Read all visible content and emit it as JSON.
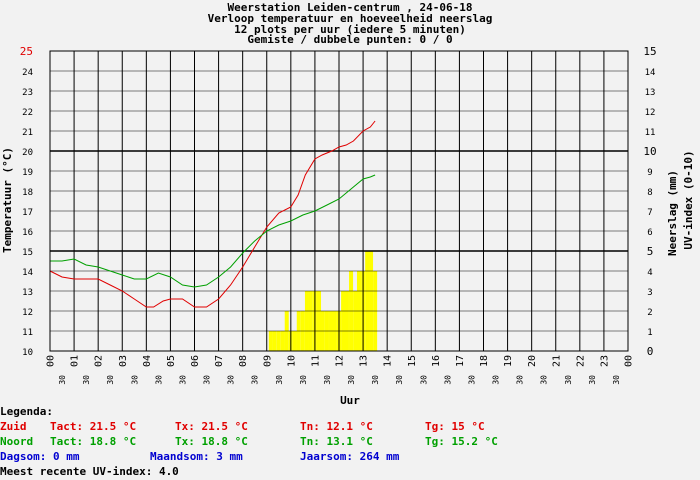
{
  "chart_data": {
    "type": "line",
    "title_lines": [
      "Weerstation Leiden-centrum , 24-06-18",
      "Verloop temperatuur en hoeveelheid neerslag",
      "12 plots per uur (iedere 5 minuten)",
      "Gemiste / dubbele punten: 0 / 0"
    ],
    "xlabel": "Uur",
    "ylabel_left": "Temperatuur (°C)",
    "ylabel_right_1": "Neerslag (mm)",
    "ylabel_right_2": "UV-index (0-10)",
    "left_axis": {
      "min": 10,
      "max": 25,
      "ticks": [
        "10",
        "11",
        "12",
        "13",
        "14",
        "15",
        "16",
        "17",
        "18",
        "19",
        "20",
        "21",
        "22",
        "23",
        "24",
        "25"
      ]
    },
    "right_axis": {
      "min": 0,
      "max": 15,
      "ticks": [
        "0",
        "1",
        "2",
        "3",
        "4",
        "5",
        "6",
        "7",
        "8",
        "9",
        "10",
        "11",
        "12",
        "13",
        "14",
        "15"
      ]
    },
    "hour_labels": [
      "00",
      "01",
      "02",
      "03",
      "04",
      "05",
      "06",
      "07",
      "08",
      "09",
      "10",
      "11",
      "12",
      "13",
      "14",
      "15",
      "16",
      "17",
      "18",
      "19",
      "20",
      "21",
      "22",
      "23",
      "00"
    ],
    "half_label": "30",
    "series": [
      {
        "name": "Zuid",
        "color": "#e00000",
        "x": [
          0,
          0.5,
          1,
          2,
          2.5,
          3,
          3.5,
          4,
          4.3,
          4.7,
          5,
          5.5,
          6,
          6.5,
          7,
          7.5,
          8,
          8.5,
          9,
          9.5,
          10,
          10.3,
          10.6,
          11,
          11.3,
          11.7,
          12,
          12.3,
          12.6,
          13,
          13.3,
          13.5
        ],
        "y": [
          14.0,
          13.7,
          13.6,
          13.6,
          13.3,
          13.0,
          12.6,
          12.2,
          12.2,
          12.5,
          12.6,
          12.6,
          12.2,
          12.2,
          12.6,
          13.3,
          14.2,
          15.2,
          16.2,
          16.9,
          17.2,
          17.8,
          18.8,
          19.6,
          19.8,
          20.0,
          20.2,
          20.3,
          20.5,
          21.0,
          21.2,
          21.5
        ]
      },
      {
        "name": "Noord",
        "color": "#00a000",
        "x": [
          0,
          0.5,
          1,
          1.5,
          2,
          2.5,
          3,
          3.5,
          4,
          4.5,
          5,
          5.5,
          6,
          6.5,
          7,
          7.5,
          8,
          8.5,
          9,
          9.5,
          10,
          10.5,
          11,
          11.5,
          12,
          12.5,
          13,
          13.3,
          13.5
        ],
        "y": [
          14.5,
          14.5,
          14.6,
          14.3,
          14.2,
          14.0,
          13.8,
          13.6,
          13.6,
          13.9,
          13.7,
          13.3,
          13.2,
          13.3,
          13.7,
          14.2,
          14.9,
          15.5,
          16.0,
          16.3,
          16.5,
          16.8,
          17.0,
          17.3,
          17.6,
          18.1,
          18.6,
          18.7,
          18.8
        ]
      }
    ],
    "bars": {
      "name": "Neerslag / UV",
      "color": "#ffff00",
      "x": [
        9.17,
        9.33,
        9.5,
        9.67,
        9.83,
        10.0,
        10.17,
        10.33,
        10.5,
        10.67,
        10.83,
        11.0,
        11.17,
        11.33,
        11.5,
        11.67,
        11.83,
        12.0,
        12.17,
        12.33,
        12.5,
        12.67,
        12.83,
        13.0,
        13.17,
        13.33,
        13.5
      ],
      "values": [
        1,
        1,
        1,
        1,
        2,
        1,
        1,
        2,
        2,
        3,
        3,
        3,
        3,
        2,
        2,
        2,
        2,
        2,
        3,
        3,
        4,
        3,
        4,
        4,
        5,
        5,
        4
      ]
    }
  },
  "legend": {
    "heading": "Legenda:",
    "rows": [
      {
        "color": "#e00000",
        "label": "Zuid",
        "tact": "Tact: 21.5 °C",
        "tx": "Tx: 21.5 °C",
        "tn": "Tn: 12.1 °C",
        "tg": "Tg: 15 °C"
      },
      {
        "color": "#00a000",
        "label": "Noord",
        "tact": "Tact: 18.8 °C",
        "tx": "Tx: 18.8 °C",
        "tn": "Tn: 13.1 °C",
        "tg": "Tg: 15.2 °C"
      }
    ],
    "rain": {
      "dag": "Dagsom: 0 mm",
      "maand": "Maandsom: 3 mm",
      "jaar": "Jaarsom: 264 mm"
    },
    "uv": "Meest recente UV-index: 4.0"
  }
}
